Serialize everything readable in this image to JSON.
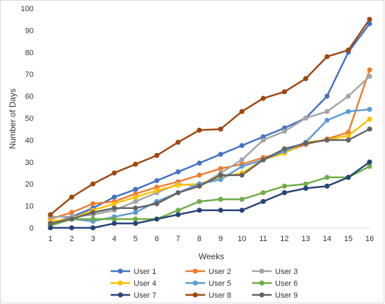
{
  "chart_data": {
    "type": "line",
    "title": "",
    "xlabel": "Weeks",
    "ylabel": "Number of Days",
    "x": [
      1,
      2,
      3,
      4,
      5,
      6,
      7,
      8,
      9,
      10,
      11,
      12,
      13,
      14,
      15,
      16
    ],
    "xlim": [
      1,
      16
    ],
    "ylim": [
      0,
      100
    ],
    "y_ticks": [
      0,
      10,
      20,
      30,
      40,
      50,
      60,
      70,
      80,
      90,
      100
    ],
    "grid": false,
    "legend_placement": "bottom",
    "series": [
      {
        "name": "User 1",
        "color": "#4472c4",
        "values": [
          2,
          5,
          9,
          14,
          17.5,
          21.5,
          25.5,
          29.5,
          33.5,
          37.5,
          41.5,
          45.5,
          50,
          60,
          80,
          93
        ]
      },
      {
        "name": "User 2",
        "color": "#ed7d31",
        "values": [
          4,
          7,
          11,
          12,
          15.5,
          18.5,
          21,
          24,
          27,
          29,
          32,
          34.5,
          38,
          40.5,
          43.5,
          72
        ]
      },
      {
        "name": "User 3",
        "color": "#a5a5a5",
        "values": [
          5,
          5,
          6,
          8,
          12,
          16,
          20,
          19,
          25,
          31,
          40,
          44,
          50,
          53,
          60,
          69
        ]
      },
      {
        "name": "User 4",
        "color": "#ffc000",
        "values": [
          3,
          4,
          8,
          11,
          14,
          17,
          19.5,
          20,
          23,
          25,
          31,
          34,
          39,
          40,
          42,
          49.5
        ]
      },
      {
        "name": "User 5",
        "color": "#5b9bd5",
        "values": [
          1,
          4,
          3,
          5,
          7,
          12,
          16,
          20,
          22,
          28,
          31,
          35,
          39,
          49,
          53,
          54
        ]
      },
      {
        "name": "User 6",
        "color": "#70ad47",
        "values": [
          1,
          4,
          4,
          4,
          4,
          4,
          8,
          12,
          13,
          13,
          16,
          19,
          20,
          23,
          23,
          28
        ]
      },
      {
        "name": "User 7",
        "color": "#264478",
        "values": [
          0,
          0,
          0,
          2,
          2,
          4,
          6,
          8,
          8,
          8,
          12,
          16,
          18,
          19,
          23,
          30
        ]
      },
      {
        "name": "User 8",
        "color": "#9e480e",
        "values": [
          6,
          14,
          20,
          25,
          29,
          33,
          39,
          44.5,
          45,
          53,
          59,
          62,
          68,
          78,
          81,
          95
        ]
      },
      {
        "name": "User 9",
        "color": "#636363",
        "values": [
          2,
          4,
          7,
          9,
          9,
          11,
          16,
          19,
          24,
          24,
          31,
          36,
          38.5,
          40,
          40,
          45
        ]
      }
    ]
  }
}
